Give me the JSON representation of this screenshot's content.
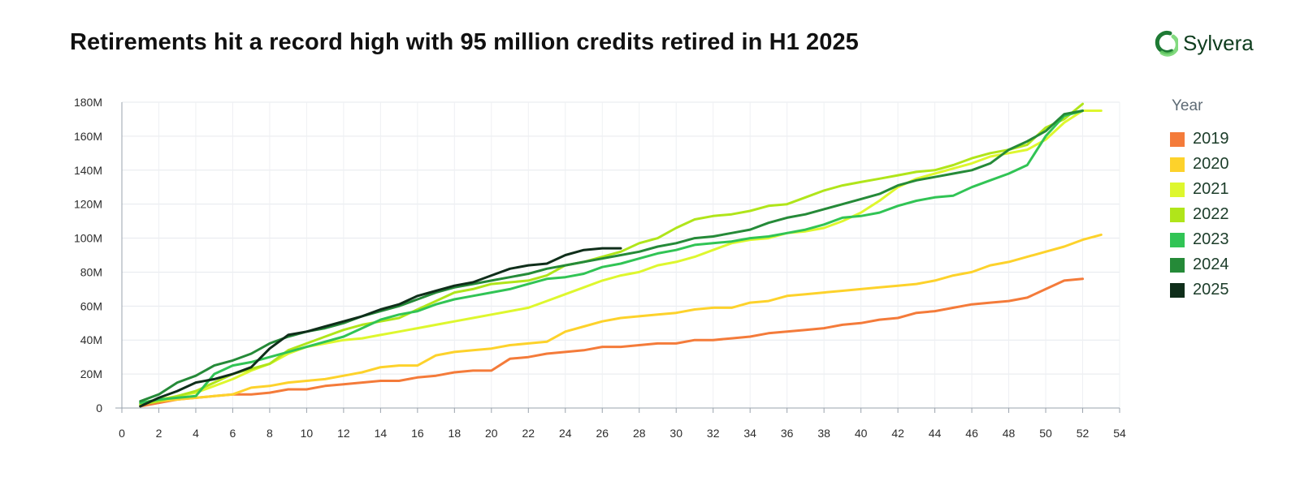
{
  "header": {
    "title": "Retirements hit a record high with 95 million credits retired in H1 2025",
    "brand_name": "Sylvera",
    "brand_color": "#1e7a34"
  },
  "chart_data": {
    "type": "line",
    "title": "Retirements hit a record high with 95 million credits retired in H1 2025",
    "xlabel": "",
    "ylabel": "",
    "xlim": [
      0,
      54
    ],
    "ylim": [
      0,
      180
    ],
    "y_unit": "M",
    "x_ticks": [
      "0",
      "2",
      "4",
      "6",
      "8",
      "10",
      "12",
      "14",
      "16",
      "18",
      "20",
      "22",
      "24",
      "26",
      "28",
      "30",
      "32",
      "34",
      "36",
      "38",
      "40",
      "42",
      "44",
      "46",
      "48",
      "50",
      "52",
      "54"
    ],
    "y_ticks": [
      "0",
      "20M",
      "40M",
      "60M",
      "80M",
      "100M",
      "120M",
      "140M",
      "160M",
      "180M"
    ],
    "grid": true,
    "legend": {
      "title": "Year",
      "placement": "right"
    },
    "series": [
      {
        "name": "2019",
        "color": "#f47b3a",
        "x": [
          1,
          2,
          3,
          4,
          5,
          6,
          7,
          8,
          9,
          10,
          11,
          12,
          13,
          14,
          15,
          16,
          17,
          18,
          19,
          20,
          21,
          22,
          23,
          24,
          25,
          26,
          27,
          28,
          29,
          30,
          31,
          32,
          33,
          34,
          35,
          36,
          37,
          38,
          39,
          40,
          41,
          42,
          43,
          44,
          45,
          46,
          47,
          48,
          49,
          50,
          51,
          52
        ],
        "y": [
          1,
          3,
          5,
          6,
          7,
          8,
          8,
          9,
          11,
          11,
          13,
          14,
          15,
          16,
          16,
          18,
          19,
          21,
          22,
          22,
          29,
          30,
          32,
          33,
          34,
          36,
          36,
          37,
          38,
          38,
          40,
          40,
          41,
          42,
          44,
          45,
          46,
          47,
          49,
          50,
          52,
          53,
          56,
          57,
          59,
          61,
          62,
          63,
          65,
          70,
          75,
          76
        ]
      },
      {
        "name": "2020",
        "color": "#fdd22b",
        "x": [
          1,
          2,
          3,
          4,
          5,
          6,
          7,
          8,
          9,
          10,
          11,
          12,
          13,
          14,
          15,
          16,
          17,
          18,
          19,
          20,
          21,
          22,
          23,
          24,
          25,
          26,
          27,
          28,
          29,
          30,
          31,
          32,
          33,
          34,
          35,
          36,
          37,
          38,
          39,
          40,
          41,
          42,
          43,
          44,
          45,
          46,
          47,
          48,
          49,
          50,
          51,
          52,
          53
        ],
        "y": [
          2,
          4,
          5,
          6,
          7,
          8,
          12,
          13,
          15,
          16,
          17,
          19,
          21,
          24,
          25,
          25,
          31,
          33,
          34,
          35,
          37,
          38,
          39,
          45,
          48,
          51,
          53,
          54,
          55,
          56,
          58,
          59,
          59,
          62,
          63,
          66,
          67,
          68,
          69,
          70,
          71,
          72,
          73,
          75,
          78,
          80,
          84,
          86,
          89,
          92,
          95,
          99,
          102
        ]
      },
      {
        "name": "2021",
        "color": "#def72e",
        "x": [
          1,
          2,
          3,
          4,
          5,
          6,
          7,
          8,
          9,
          10,
          11,
          12,
          13,
          14,
          15,
          16,
          17,
          18,
          19,
          20,
          21,
          22,
          23,
          24,
          25,
          26,
          27,
          28,
          29,
          30,
          31,
          32,
          33,
          34,
          35,
          36,
          37,
          38,
          39,
          40,
          41,
          42,
          43,
          44,
          45,
          46,
          47,
          48,
          49,
          50,
          51,
          52,
          53
        ],
        "y": [
          3,
          5,
          7,
          9,
          13,
          17,
          22,
          26,
          32,
          36,
          38,
          40,
          41,
          43,
          45,
          47,
          49,
          51,
          53,
          55,
          57,
          59,
          63,
          67,
          71,
          75,
          78,
          80,
          84,
          86,
          89,
          93,
          97,
          99,
          100,
          103,
          104,
          106,
          110,
          115,
          122,
          130,
          135,
          138,
          141,
          144,
          148,
          150,
          152,
          158,
          168,
          175,
          175
        ]
      },
      {
        "name": "2022",
        "color": "#b0e51a",
        "x": [
          1,
          2,
          3,
          4,
          5,
          6,
          7,
          8,
          9,
          10,
          11,
          12,
          13,
          14,
          15,
          16,
          17,
          18,
          19,
          20,
          21,
          22,
          23,
          24,
          25,
          26,
          27,
          28,
          29,
          30,
          31,
          32,
          33,
          34,
          35,
          36,
          37,
          38,
          39,
          40,
          41,
          42,
          43,
          44,
          45,
          46,
          47,
          48,
          49,
          50,
          51,
          52
        ],
        "y": [
          2,
          4,
          7,
          10,
          15,
          20,
          23,
          26,
          34,
          38,
          42,
          46,
          49,
          51,
          53,
          58,
          63,
          68,
          70,
          73,
          74,
          75,
          78,
          84,
          86,
          89,
          92,
          97,
          100,
          106,
          111,
          113,
          114,
          116,
          119,
          120,
          124,
          128,
          131,
          133,
          135,
          137,
          139,
          140,
          143,
          147,
          150,
          152,
          155,
          165,
          170,
          179
        ]
      },
      {
        "name": "2023",
        "color": "#31c455",
        "x": [
          1,
          2,
          3,
          4,
          5,
          6,
          7,
          8,
          9,
          10,
          11,
          12,
          13,
          14,
          15,
          16,
          17,
          18,
          19,
          20,
          21,
          22,
          23,
          24,
          25,
          26,
          27,
          28,
          29,
          30,
          31,
          32,
          33,
          34,
          35,
          36,
          37,
          38,
          39,
          40,
          41,
          42,
          43,
          44,
          45,
          46,
          47,
          48,
          49,
          50,
          51,
          52
        ],
        "y": [
          3,
          5,
          6,
          7,
          20,
          25,
          27,
          30,
          33,
          36,
          39,
          42,
          47,
          52,
          55,
          57,
          61,
          64,
          66,
          68,
          70,
          73,
          76,
          77,
          79,
          83,
          85,
          88,
          91,
          93,
          96,
          97,
          98,
          100,
          101,
          103,
          105,
          108,
          112,
          113,
          115,
          119,
          122,
          124,
          125,
          130,
          134,
          138,
          143,
          160,
          172,
          175
        ]
      },
      {
        "name": "2024",
        "color": "#258a38",
        "x": [
          1,
          2,
          3,
          4,
          5,
          6,
          7,
          8,
          9,
          10,
          11,
          12,
          13,
          14,
          15,
          16,
          17,
          18,
          19,
          20,
          21,
          22,
          23,
          24,
          25,
          26,
          27,
          28,
          29,
          30,
          31,
          32,
          33,
          34,
          35,
          36,
          37,
          38,
          39,
          40,
          41,
          42,
          43,
          44,
          45,
          46,
          47,
          48,
          49,
          50,
          51,
          52
        ],
        "y": [
          4,
          8,
          15,
          19,
          25,
          28,
          32,
          38,
          42,
          45,
          47,
          50,
          54,
          57,
          60,
          64,
          68,
          71,
          73,
          75,
          77,
          79,
          82,
          84,
          86,
          88,
          90,
          92,
          95,
          97,
          100,
          101,
          103,
          105,
          109,
          112,
          114,
          117,
          120,
          123,
          126,
          131,
          134,
          136,
          138,
          140,
          144,
          152,
          157,
          163,
          173,
          175
        ]
      },
      {
        "name": "2025",
        "color": "#0f2e1a",
        "x": [
          1,
          2,
          3,
          4,
          5,
          6,
          7,
          8,
          9,
          10,
          11,
          12,
          13,
          14,
          15,
          16,
          17,
          18,
          19,
          20,
          21,
          22,
          23,
          24,
          25,
          26,
          27
        ],
        "y": [
          1,
          6,
          10,
          15,
          17,
          20,
          24,
          35,
          43,
          45,
          48,
          51,
          54,
          58,
          61,
          66,
          69,
          72,
          74,
          78,
          82,
          84,
          85,
          90,
          93,
          94,
          94
        ]
      }
    ]
  }
}
